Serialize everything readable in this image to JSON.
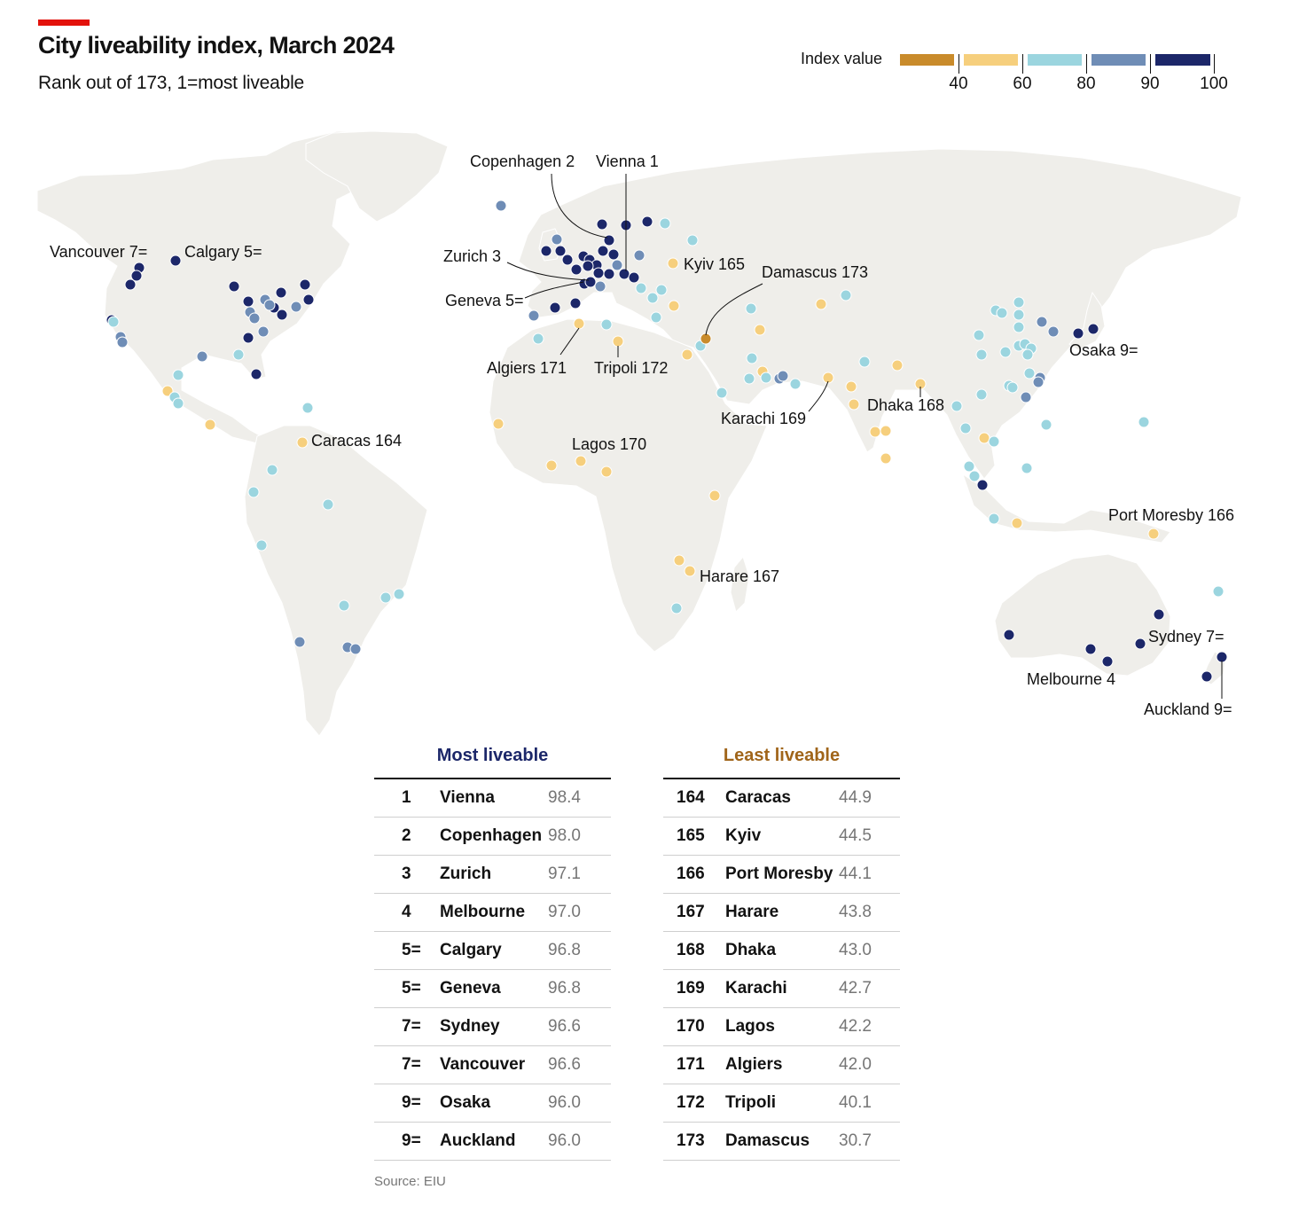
{
  "header": {
    "title": "City liveability index, March 2024",
    "subtitle": "Rank out of 173, 1=most liveable"
  },
  "legend": {
    "title": "Index value",
    "bins": [
      {
        "color": "#c98b2b",
        "from": 30,
        "to": 40
      },
      {
        "color": "#f6cf7d",
        "from": 40,
        "to": 60
      },
      {
        "color": "#9bd5df",
        "from": 60,
        "to": 80
      },
      {
        "color": "#6f8db6",
        "from": 80,
        "to": 90
      },
      {
        "color": "#1c2769",
        "from": 90,
        "to": 100
      }
    ],
    "ticks": [
      "40",
      "60",
      "80",
      "90",
      "100"
    ]
  },
  "map": {
    "land_color": "#efeeea",
    "labels": [
      "Vienna 1",
      "Copenhagen 2",
      "Zurich 3",
      "Melbourne 4",
      "Calgary 5=",
      "Geneva 5=",
      "Sydney 7=",
      "Vancouver 7=",
      "Osaka 9=",
      "Auckland 9=",
      "Caracas 164",
      "Kyiv 165",
      "Port Moresby 166",
      "Harare 167",
      "Dhaka 168",
      "Karachi 169",
      "Lagos 170",
      "Algiers 171",
      "Tripoli 172",
      "Damascus 173"
    ]
  },
  "tables": {
    "most": {
      "title": "Most liveable",
      "title_color": "#1c2769",
      "rows": [
        {
          "rank": "1",
          "city": "Vienna",
          "value": "98.4"
        },
        {
          "rank": "2",
          "city": "Copenhagen",
          "value": "98.0"
        },
        {
          "rank": "3",
          "city": "Zurich",
          "value": "97.1"
        },
        {
          "rank": "4",
          "city": "Melbourne",
          "value": "97.0"
        },
        {
          "rank": "5=",
          "city": "Calgary",
          "value": "96.8"
        },
        {
          "rank": "5=",
          "city": "Geneva",
          "value": "96.8"
        },
        {
          "rank": "7=",
          "city": "Sydney",
          "value": "96.6"
        },
        {
          "rank": "7=",
          "city": "Vancouver",
          "value": "96.6"
        },
        {
          "rank": "9=",
          "city": "Osaka",
          "value": "96.0"
        },
        {
          "rank": "9=",
          "city": "Auckland",
          "value": "96.0"
        }
      ]
    },
    "least": {
      "title": "Least liveable",
      "title_color": "#a0651a",
      "rows": [
        {
          "rank": "164",
          "city": "Caracas",
          "value": "44.9"
        },
        {
          "rank": "165",
          "city": "Kyiv",
          "value": "44.5"
        },
        {
          "rank": "166",
          "city": "Port Moresby",
          "value": "44.1"
        },
        {
          "rank": "167",
          "city": "Harare",
          "value": "43.8"
        },
        {
          "rank": "168",
          "city": "Dhaka",
          "value": "43.0"
        },
        {
          "rank": "169",
          "city": "Karachi",
          "value": "42.7"
        },
        {
          "rank": "170",
          "city": "Lagos",
          "value": "42.2"
        },
        {
          "rank": "171",
          "city": "Algiers",
          "value": "42.0"
        },
        {
          "rank": "172",
          "city": "Tripoli",
          "value": "40.1"
        },
        {
          "rank": "173",
          "city": "Damascus",
          "value": "30.7"
        }
      ]
    }
  },
  "source": "Source: EIU"
}
